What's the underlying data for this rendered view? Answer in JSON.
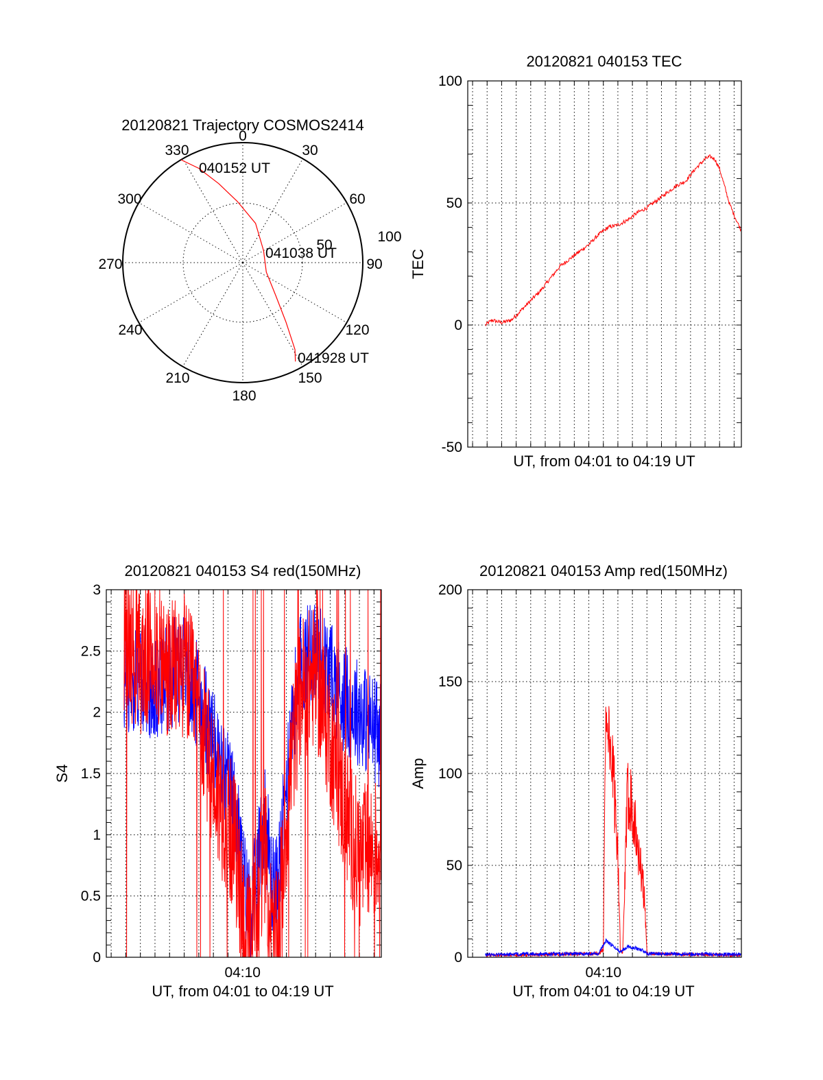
{
  "colors": {
    "red": "#ff0000",
    "blue": "#0000ff",
    "axis": "#000000"
  },
  "chart_data": [
    {
      "type": "polar",
      "title": "20120821 Trajectory COSMOS2414",
      "angle_labels": [
        "0",
        "30",
        "60",
        "90",
        "120",
        "150",
        "180",
        "210",
        "240",
        "270",
        "300",
        "330"
      ],
      "angles": [
        0,
        30,
        60,
        90,
        120,
        150,
        180,
        210,
        240,
        270,
        300,
        330
      ],
      "radius_ticks": [
        {
          "elevation": 50,
          "label": "50"
        },
        {
          "elevation": 100,
          "label": "100"
        }
      ],
      "series": [
        {
          "color": "#ff0000",
          "points": [
            {
              "azimuth": 329,
              "elevation": 0
            },
            {
              "azimuth": 335,
              "elevation": 12
            },
            {
              "azimuth": 343,
              "elevation": 28
            },
            {
              "azimuth": 355,
              "elevation": 44
            },
            {
              "azimuth": 18,
              "elevation": 59
            },
            {
              "azimuth": 60,
              "elevation": 72
            },
            {
              "azimuth": 112,
              "elevation": 71
            },
            {
              "azimuth": 135,
              "elevation": 55
            },
            {
              "azimuth": 144,
              "elevation": 35
            },
            {
              "azimuth": 149,
              "elevation": 14
            },
            {
              "azimuth": 152,
              "elevation": 6
            }
          ]
        }
      ],
      "annotations": [
        {
          "text": "040152 UT",
          "azimuth": 344,
          "elevation": 12
        },
        {
          "text": "041038 UT",
          "azimuth": 78,
          "elevation": 69
        },
        {
          "text": "041928 UT",
          "azimuth": 142,
          "elevation": 5
        }
      ]
    },
    {
      "type": "line",
      "title": "20120821 040153 TEC",
      "xlabel": "UT, from 04:01 to 04:19 UT",
      "ylabel": "TEC",
      "ylim": [
        -50,
        100
      ],
      "yticks": [
        -50,
        0,
        50,
        100
      ],
      "xlim": [
        "04:00:40",
        "04:19:30"
      ],
      "grid": true,
      "series": [
        {
          "color": "#ff0000",
          "x": [
            "04:01:53",
            "04:02:20",
            "04:03:00",
            "04:03:40",
            "04:04:20",
            "04:05:00",
            "04:05:40",
            "04:06:20",
            "04:07:00",
            "04:07:40",
            "04:08:20",
            "04:09:00",
            "04:09:40",
            "04:10:20",
            "04:11:00",
            "04:11:40",
            "04:12:20",
            "04:13:00",
            "04:13:40",
            "04:14:20",
            "04:15:00",
            "04:15:40",
            "04:16:20",
            "04:17:00",
            "04:17:20",
            "04:17:40",
            "04:18:00",
            "04:18:20",
            "04:18:40",
            "04:19:00",
            "04:19:28"
          ],
          "y": [
            0,
            2,
            1,
            2,
            6,
            10,
            14,
            19,
            24,
            27,
            30,
            33,
            37,
            40,
            41,
            43,
            46,
            48,
            51,
            54,
            57,
            59,
            64,
            68,
            69,
            68,
            64,
            57,
            50,
            45,
            39
          ]
        }
      ]
    },
    {
      "type": "line",
      "title": "20120821 040153 S4 red(150MHz)",
      "xlabel": "UT, from 04:01 to 04:19 UT",
      "ylabel": "S4",
      "ylim": [
        0,
        3
      ],
      "yticks": [
        0,
        0.5,
        1,
        1.5,
        2,
        2.5,
        3
      ],
      "ytick_labels": [
        "0",
        "0.5",
        "1",
        "1.5",
        "2",
        "2.5",
        "3"
      ],
      "xlim": [
        "04:00:40",
        "04:19:30"
      ],
      "xticks": [
        "04:10"
      ],
      "grid": true,
      "series": [
        {
          "color": "#0000ff",
          "x": [
            "04:01:53",
            "04:03:00",
            "04:04:00",
            "04:05:00",
            "04:06:00",
            "04:07:00",
            "04:07:40",
            "04:08:20",
            "04:09:00",
            "04:09:30",
            "04:10:00",
            "04:10:20",
            "04:10:40",
            "04:11:00",
            "04:11:30",
            "04:12:00",
            "04:12:20",
            "04:12:40",
            "04:13:20",
            "04:14:00",
            "04:15:00",
            "04:16:00",
            "04:17:00",
            "04:18:00",
            "04:19:28"
          ],
          "y": [
            2.2,
            2.3,
            2.2,
            2.3,
            2.4,
            2.1,
            1.9,
            1.6,
            1.4,
            1.2,
            0.7,
            0.45,
            0.4,
            0.7,
            1.2,
            0.6,
            0.55,
            0.9,
            1.9,
            2.4,
            2.5,
            2.3,
            2.1,
            2.0,
            1.8
          ]
        },
        {
          "color": "#ff0000",
          "x": [
            "04:01:53",
            "04:03:00",
            "04:04:00",
            "04:05:00",
            "04:06:00",
            "04:07:00",
            "04:07:40",
            "04:08:20",
            "04:09:00",
            "04:09:30",
            "04:10:00",
            "04:10:20",
            "04:10:40",
            "04:11:00",
            "04:11:30",
            "04:12:00",
            "04:12:20",
            "04:12:40",
            "04:13:20",
            "04:14:00",
            "04:15:00",
            "04:16:00",
            "04:17:00",
            "04:18:00",
            "04:19:28"
          ],
          "y": [
            2.6,
            2.4,
            2.5,
            2.3,
            2.4,
            2.0,
            1.6,
            1.3,
            1.1,
            0.9,
            0.4,
            0.12,
            0.1,
            0.5,
            0.9,
            0.15,
            0.1,
            0.6,
            1.6,
            2.2,
            2.3,
            1.8,
            1.2,
            0.8,
            0.9
          ]
        }
      ]
    },
    {
      "type": "line",
      "title": "20120821 040153 Amp red(150MHz)",
      "xlabel": "UT, from 04:01 to 04:19 UT",
      "ylabel": "Amp",
      "ylim": [
        0,
        200
      ],
      "yticks": [
        0,
        50,
        100,
        150,
        200
      ],
      "xlim": [
        "04:00:40",
        "04:19:30"
      ],
      "xticks": [
        "04:10"
      ],
      "grid": true,
      "series": [
        {
          "color": "#ff0000",
          "x": [
            "04:01:53",
            "04:09:40",
            "04:10:00",
            "04:10:10",
            "04:10:20",
            "04:10:40",
            "04:11:00",
            "04:11:10",
            "04:11:20",
            "04:11:40",
            "04:12:00",
            "04:12:20",
            "04:12:40",
            "04:12:50",
            "04:13:00",
            "04:19:28"
          ],
          "y": [
            1,
            2,
            4,
            138,
            125,
            100,
            60,
            3,
            2,
            90,
            85,
            60,
            45,
            30,
            2,
            1
          ]
        },
        {
          "color": "#0000ff",
          "x": [
            "04:01:53",
            "04:09:40",
            "04:10:10",
            "04:10:40",
            "04:11:10",
            "04:11:40",
            "04:12:10",
            "04:12:40",
            "04:13:00",
            "04:19:28"
          ],
          "y": [
            1.5,
            2,
            9,
            6,
            3,
            6,
            5,
            4,
            2,
            1.5
          ]
        }
      ]
    }
  ]
}
